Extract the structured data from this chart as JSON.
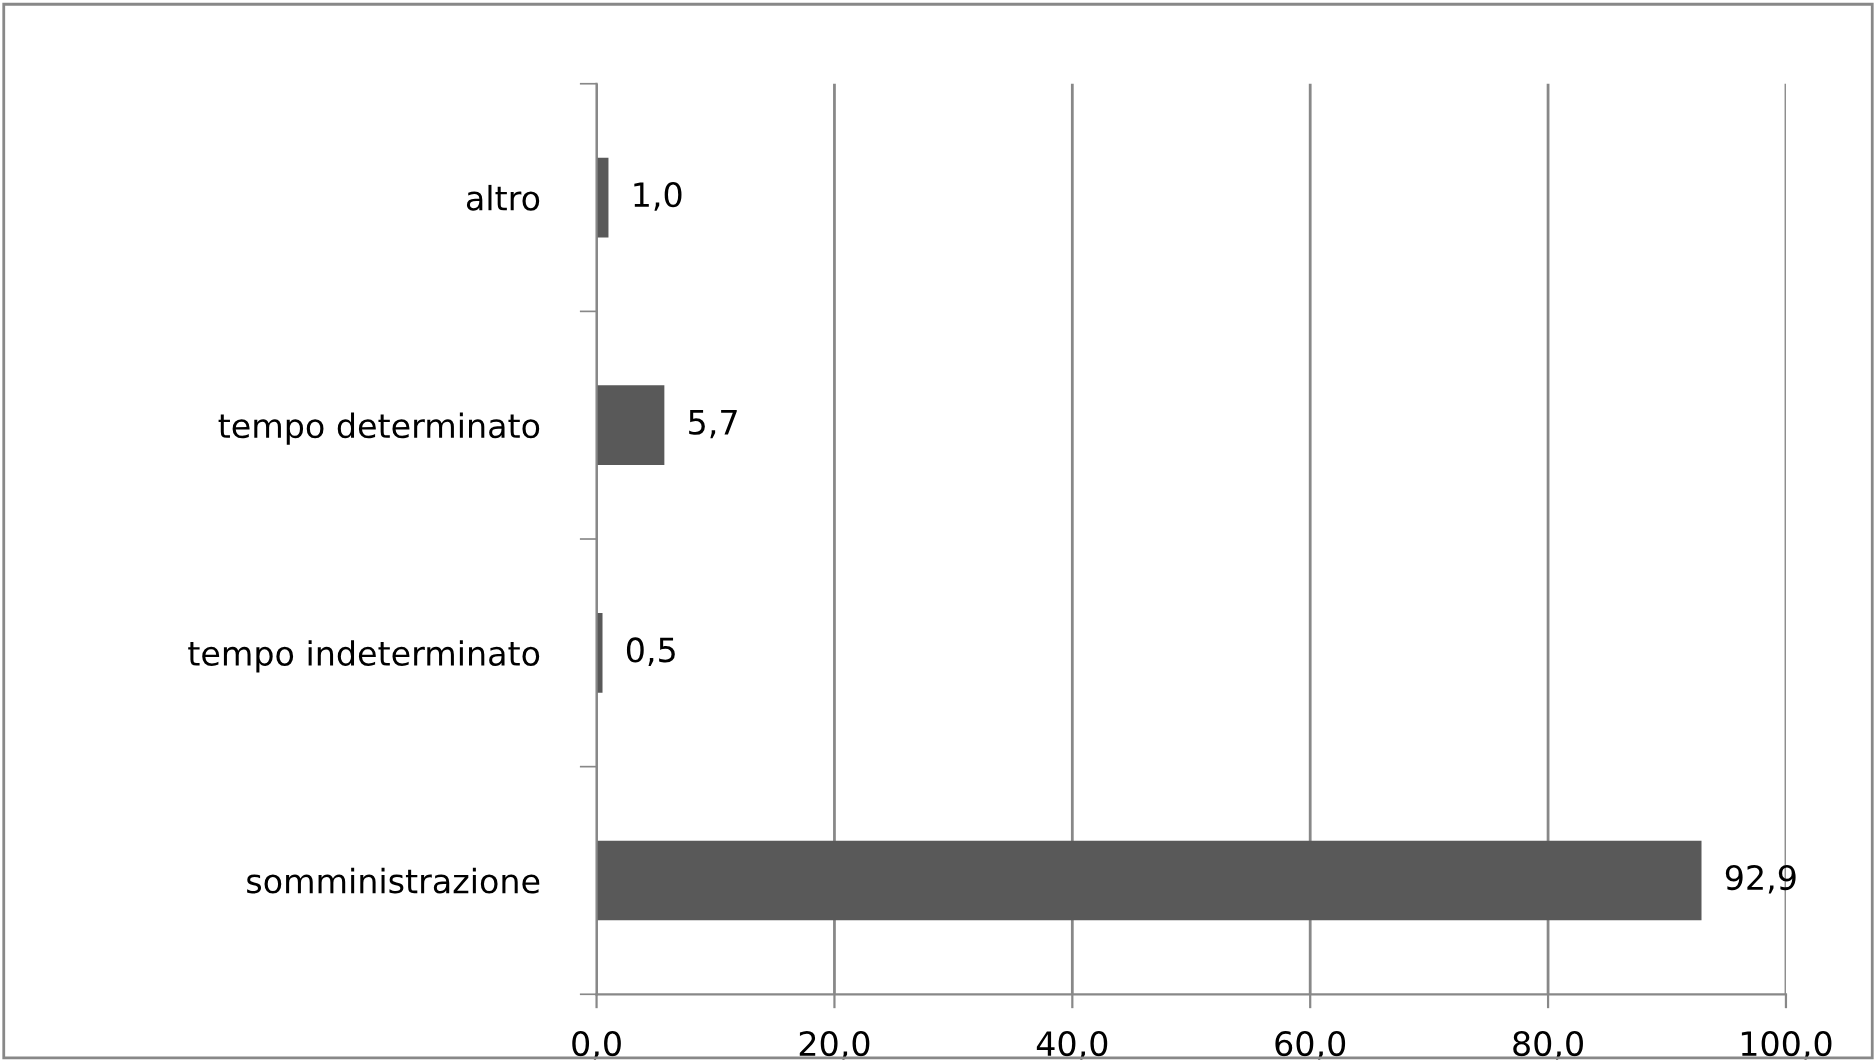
{
  "chart_data": {
    "type": "bar",
    "orientation": "horizontal",
    "categories": [
      "altro",
      "tempo determinato",
      "tempo indeterminato",
      "somministrazione"
    ],
    "values": [
      1.0,
      5.7,
      0.5,
      92.9
    ],
    "value_labels": [
      "1,0",
      "5,7",
      "0,5",
      "92,9"
    ],
    "color": "#595959",
    "xlim": [
      0,
      100
    ],
    "xticks": [
      {
        "value": 0,
        "label": "0,0"
      },
      {
        "value": 20,
        "label": "20,0"
      },
      {
        "value": 40,
        "label": "40,0"
      },
      {
        "value": 60,
        "label": "60,0"
      },
      {
        "value": 80,
        "label": "80,0"
      },
      {
        "value": 100,
        "label": "100,0"
      }
    ],
    "grid": "x",
    "legend": false
  }
}
